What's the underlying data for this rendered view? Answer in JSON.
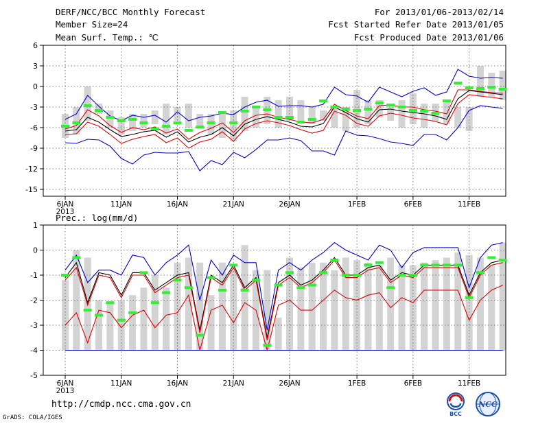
{
  "header": {
    "title": "DERF/NCC/BCC Monthly Forecast",
    "member_size": "Member Size=24",
    "period": "For 2013/01/06-2013/02/14",
    "start_refer": "Fcst Started Refer Date 2013/01/05",
    "produced": "Fcst Produced Date 2013/01/06"
  },
  "footer": {
    "url": "http://cmdp.ncc.cma.gov.cn",
    "grads": "GrADS: COLA/IGES",
    "logo_left_text": "BCC",
    "logo_right_text": "NCC"
  },
  "colors": {
    "blue": "#0000cc",
    "red": "#e00000",
    "black": "#000000",
    "green": "#33ee33",
    "bar": "#d3d3d3"
  },
  "chart_data": [
    {
      "type": "line",
      "title": "Mean Surf. Temp.: ℃",
      "days": 40,
      "ylim": [
        -16,
        6
      ],
      "yticks": [
        6,
        3,
        0,
        -3,
        -6,
        -9,
        -12,
        -15
      ],
      "xtick_labels": [
        "6JAN",
        "11JAN",
        "16JAN",
        "21JAN",
        "26JAN",
        "1FEB",
        "6FEB",
        "11FEB"
      ],
      "year_label": "2013",
      "bars_low": [
        -7.5,
        -7,
        -5,
        -4,
        -6,
        -7,
        -6.5,
        -6,
        -5.5,
        -7,
        -5,
        -6,
        -6,
        -7,
        -7.5,
        -8,
        -6.5,
        -6,
        -5.5,
        -6,
        -5,
        -5,
        -5.5,
        -5,
        -6,
        -6.5,
        -6,
        -5.5,
        -4.5,
        -5,
        -6,
        -5.5,
        -6,
        -5,
        -5.5,
        -6,
        -6.5,
        -1.5,
        -1.5,
        -2
      ],
      "bars_high": [
        -4,
        -3,
        0,
        -2.5,
        -3.5,
        -4.5,
        -4,
        -4,
        -3.5,
        -2.5,
        -3,
        -2.5,
        -4,
        -4,
        -4,
        -3.5,
        -1.5,
        -3,
        -1.5,
        -2,
        -1.5,
        -2,
        -3,
        -3.5,
        -3,
        -3,
        -0.5,
        -2,
        -2,
        -3,
        -2,
        -1,
        -2.5,
        -2.5,
        -2,
        -3,
        -3,
        3,
        2,
        2.3
      ],
      "green": [
        -5.8,
        -5.3,
        -2.8,
        -3.5,
        -4.5,
        -5,
        -4.8,
        -5.3,
        -6.2,
        -5.8,
        -5.3,
        -6.4,
        -5.9,
        -5.3,
        -3.8,
        -5.3,
        -3.6,
        -3,
        -3.4,
        -4.5,
        -4.5,
        -5.2,
        -4.8,
        -2.1,
        -3,
        -3.3,
        -3.5,
        -3.3,
        -2.4,
        -2.7,
        -3,
        -3.5,
        -3.6,
        -3.9,
        -2.1,
        0.5,
        -0.2,
        -0.3,
        -0.1,
        -0.4
      ],
      "series": [
        {
          "name": "max",
          "color": "#0000cc",
          "values": [
            -4.8,
            -4,
            -1.3,
            -2.9,
            -4.3,
            -5,
            -4.2,
            -4.5,
            -4.2,
            -5.2,
            -3.7,
            -5,
            -4.5,
            -4.3,
            -3.9,
            -4.1,
            -3,
            -2.3,
            -2,
            -2.9,
            -2.8,
            -2.8,
            -3,
            -2.6,
            -0.1,
            -1.2,
            -1.4,
            -2.3,
            -0.1,
            -0.8,
            -1.5,
            -0.7,
            -0.2,
            -1.3,
            -0.8,
            2.5,
            1.5,
            1.2,
            1.3,
            1.2
          ]
        },
        {
          "name": "upper",
          "color": "#e00000",
          "values": [
            -6.2,
            -5.7,
            -3.4,
            -4.3,
            -5.7,
            -6.7,
            -6,
            -6.3,
            -5.9,
            -6.8,
            -6.2,
            -7.7,
            -6.7,
            -6.1,
            -5.3,
            -6.7,
            -5,
            -4.2,
            -4,
            -4.5,
            -4.8,
            -5.2,
            -5.3,
            -4.8,
            -2.6,
            -3.5,
            -4.3,
            -4.7,
            -2.8,
            -2.7,
            -3,
            -3,
            -3.4,
            -3.6,
            -4,
            -0.5,
            -0.5,
            -0.7,
            -0.9,
            -1
          ]
        },
        {
          "name": "mean",
          "color": "#000000",
          "values": [
            -6.5,
            -6.3,
            -4.5,
            -5.2,
            -6.3,
            -7.3,
            -7,
            -6.6,
            -6.4,
            -7.4,
            -6.6,
            -8.1,
            -7.4,
            -7,
            -6,
            -7.2,
            -5.5,
            -4.8,
            -4.4,
            -4.8,
            -5.2,
            -5.8,
            -5.9,
            -5.4,
            -3,
            -3.8,
            -4.7,
            -5.2,
            -3.4,
            -3.3,
            -3.6,
            -3.8,
            -4,
            -4.3,
            -4.8,
            -1.8,
            -0.6,
            -0.8,
            -1,
            -1.2
          ]
        },
        {
          "name": "lower",
          "color": "#e00000",
          "values": [
            -7,
            -6.9,
            -5.2,
            -5.8,
            -7,
            -8.3,
            -7.7,
            -7.3,
            -7,
            -8.2,
            -7.5,
            -9,
            -8.1,
            -7.7,
            -6.6,
            -8,
            -6.2,
            -5.4,
            -5,
            -5.3,
            -5.7,
            -6.3,
            -6.8,
            -6.4,
            -3.6,
            -4.2,
            -5.4,
            -5.8,
            -4.3,
            -3.9,
            -4.2,
            -4.6,
            -4.8,
            -5.1,
            -5.6,
            -2.5,
            -1.2,
            -1.4,
            -1.6,
            -1.8
          ]
        },
        {
          "name": "min",
          "color": "#0000cc",
          "values": [
            -8.2,
            -8.3,
            -7.7,
            -7.8,
            -8.7,
            -10.5,
            -11.3,
            -10,
            -9.6,
            -9.7,
            -9.7,
            -9.5,
            -12.3,
            -10.8,
            -11.4,
            -9.6,
            -10.4,
            -9.2,
            -7.8,
            -7.8,
            -7.5,
            -7.9,
            -9.4,
            -9.4,
            -10,
            -6.5,
            -7.1,
            -7.2,
            -7.6,
            -8.1,
            -8.3,
            -8.6,
            -7,
            -7,
            -7.8,
            -6,
            -3.5,
            -2.8,
            -3,
            -3.2
          ]
        }
      ]
    },
    {
      "type": "line",
      "title": "Prec.: log(mm/d)",
      "days": 40,
      "ylim": [
        -5,
        1
      ],
      "yticks": [
        1,
        0,
        -1,
        -2,
        -3,
        -4,
        -5
      ],
      "xtick_labels": [
        "6JAN",
        "11JAN",
        "16JAN",
        "21JAN",
        "26JAN",
        "1FEB",
        "6FEB",
        "11FEB"
      ],
      "year_label": "2013",
      "bar_base": -4,
      "bars_high": [
        -1.2,
        0,
        -0.3,
        -2,
        -2.1,
        -2,
        -1.8,
        -1.5,
        -1,
        -1.5,
        -0.5,
        -0.3,
        -0.5,
        -1.8,
        -0.5,
        -0.8,
        0.2,
        -0.8,
        -0.8,
        -2.7,
        -0.3,
        -0.7,
        -0.5,
        -0.5,
        -0.8,
        -0.3,
        -0.4,
        -0.5,
        -0.6,
        -0.3,
        -0.6,
        -0.6,
        -0.5,
        -0.4,
        -0.3,
        -0.1,
        -0.2,
        -0.3,
        -0.6,
        0.3
      ],
      "green": [
        -1,
        -0.3,
        -2.4,
        -2.6,
        -2.1,
        -2.8,
        -2.5,
        -0.9,
        -2.1,
        -1.7,
        -1.2,
        -1.5,
        -3.4,
        -1.1,
        -1.6,
        -0.6,
        -1.6,
        -1.2,
        -3.8,
        -1.4,
        -0.9,
        -1.5,
        -1.4,
        -0.9,
        -0.4,
        -1,
        -1,
        -0.6,
        -0.5,
        -1.5,
        -1,
        -1,
        -0.6,
        -0.6,
        -0.6,
        -0.6,
        -1.9,
        -0.9,
        -0.3,
        -0.4
      ],
      "series": [
        {
          "name": "max",
          "color": "#0000cc",
          "values": [
            -0.8,
            -0.2,
            -1.3,
            -0.8,
            -0.8,
            -1,
            -0.2,
            -0.3,
            -1,
            -0.5,
            -0.2,
            0.2,
            -2,
            -0.4,
            -1,
            -0.2,
            -0.5,
            -0.5,
            -3.2,
            -0.8,
            -0.5,
            -0.8,
            -0.4,
            -0.1,
            0.3,
            0,
            -0.2,
            -0.4,
            0.2,
            0,
            -0.7,
            -0.1,
            0.1,
            0.1,
            0.1,
            0.1,
            -1.5,
            -0.3,
            0.2,
            0.3
          ]
        },
        {
          "name": "mean",
          "color": "#000000",
          "values": [
            -1.1,
            -0.5,
            -2.1,
            -0.9,
            -1,
            -1.8,
            -0.9,
            -0.9,
            -1.6,
            -1.3,
            -1,
            -0.9,
            -3.2,
            -1,
            -1.3,
            -0.6,
            -1.5,
            -1.1,
            -3.5,
            -1.3,
            -1,
            -1.4,
            -1.2,
            -0.8,
            -0.3,
            -1,
            -1,
            -0.7,
            -0.6,
            -1.2,
            -0.9,
            -1,
            -0.6,
            -0.6,
            -0.6,
            -0.6,
            -1.8,
            -0.9,
            -0.5,
            -0.4
          ]
        },
        {
          "name": "upper",
          "color": "#e00000",
          "values": [
            -1.2,
            -0.7,
            -2.2,
            -1,
            -1.1,
            -1.9,
            -1,
            -1,
            -1.7,
            -1.4,
            -1.1,
            -1,
            -3.3,
            -1.1,
            -1.4,
            -0.7,
            -1.6,
            -1.2,
            -3.6,
            -1.4,
            -1.1,
            -1.5,
            -1.3,
            -0.9,
            -0.4,
            -1.1,
            -1.1,
            -0.8,
            -0.7,
            -1.3,
            -1,
            -1.1,
            -0.7,
            -0.7,
            -0.7,
            -0.7,
            -1.9,
            -1,
            -0.6,
            -0.5
          ]
        },
        {
          "name": "lower",
          "color": "#e00000",
          "values": [
            -3,
            -2.5,
            -3.7,
            -2.4,
            -2.5,
            -3.1,
            -2.6,
            -2.4,
            -3.1,
            -2.6,
            -2.5,
            -1.8,
            -4,
            -2.4,
            -2.2,
            -2.9,
            -2.1,
            -2.4,
            -4,
            -2.2,
            -2,
            -2.4,
            -2.4,
            -2,
            -1.6,
            -1.9,
            -2,
            -1.8,
            -1.7,
            -2.3,
            -1.9,
            -2.1,
            -1.6,
            -1.6,
            -1.6,
            -1.6,
            -2.8,
            -2,
            -1.6,
            -1.4
          ]
        },
        {
          "name": "min",
          "color": "#0000cc",
          "values": [
            -4,
            -4,
            -4,
            -4,
            -4,
            -4,
            -4,
            -4,
            -4,
            -4,
            -4,
            -4,
            -4,
            -4,
            -4,
            -4,
            -4,
            -4,
            -4,
            -4,
            -4,
            -4,
            -4,
            -4,
            -4,
            -4,
            -4,
            -4,
            -4,
            -4,
            -4,
            -4,
            -4,
            -4,
            -4,
            -4,
            -4,
            -4,
            -4,
            -4
          ]
        }
      ]
    }
  ]
}
